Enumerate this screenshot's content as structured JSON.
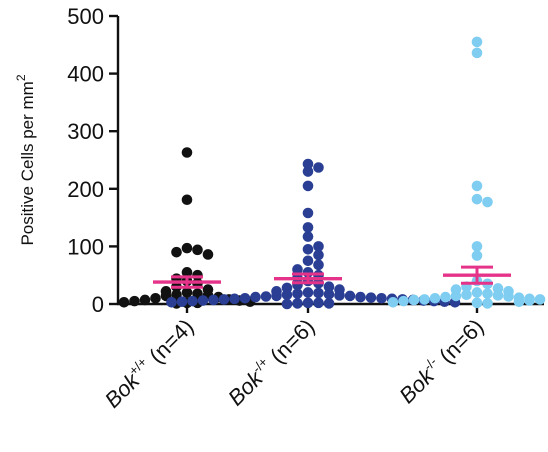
{
  "chart_data": {
    "type": "scatter",
    "ylabel": "Positive Cells per mm",
    "ylabel_superscript": "2",
    "ylim": [
      0,
      500
    ],
    "yticks": [
      0,
      100,
      200,
      300,
      400,
      500
    ],
    "grid": false,
    "categories": [
      {
        "genotype": "Bok",
        "sup": "+/+",
        "n_label": " (n=4)"
      },
      {
        "genotype": "Bok",
        "sup": "-/+",
        "n_label": " (n=6)"
      },
      {
        "genotype": "Bok",
        "sup": "-/-",
        "n_label": " (n=6)"
      }
    ],
    "series": [
      {
        "color": "#111111",
        "values": [
          263,
          181,
          97,
          94,
          90,
          86,
          55,
          50,
          44,
          40,
          36,
          30,
          25,
          22,
          20,
          18,
          16,
          15,
          14,
          12,
          10,
          8,
          7,
          6,
          5,
          4,
          3,
          2,
          2,
          1
        ],
        "mean": 38,
        "sem_upper": 47,
        "sem_lower": 29
      },
      {
        "color": "#2a3e93",
        "values": [
          243,
          237,
          230,
          205,
          158,
          133,
          117,
          100,
          95,
          85,
          75,
          68,
          60,
          55,
          50,
          45,
          40,
          36,
          33,
          30,
          28,
          25,
          22,
          20,
          19,
          18,
          17,
          16,
          15,
          14,
          14,
          13,
          12,
          12,
          11,
          10,
          10,
          9,
          9,
          8,
          8,
          7,
          7,
          6,
          6,
          5,
          5,
          4,
          4,
          3,
          3,
          2,
          2,
          1,
          1,
          0
        ],
        "mean": 44,
        "sem_upper": 52,
        "sem_lower": 37
      },
      {
        "color": "#7fcdf0",
        "values": [
          455,
          436,
          205,
          182,
          177,
          100,
          84,
          40,
          35,
          30,
          27,
          25,
          22,
          20,
          18,
          16,
          15,
          14,
          13,
          12,
          11,
          10,
          9,
          8,
          8,
          7,
          6,
          5,
          4,
          3,
          2,
          1
        ],
        "mean": 50,
        "sem_upper": 64,
        "sem_lower": 36
      }
    ],
    "mean_sem_color": "#e6338a"
  }
}
